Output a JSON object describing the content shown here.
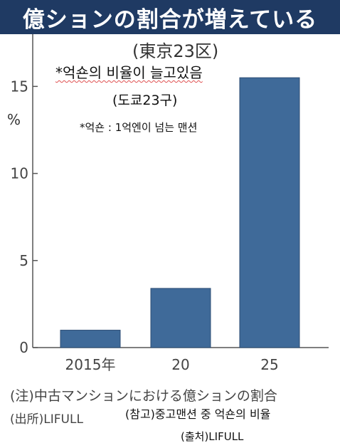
{
  "chart_data": {
    "type": "bar",
    "title": "億ションの割合が増えている",
    "subtitle": "(東京23区)",
    "ylabel": "%",
    "categories": [
      "2015年",
      "20",
      "25"
    ],
    "values": [
      1.0,
      3.4,
      15.5
    ],
    "ylim": [
      0,
      18
    ],
    "yticks": [
      0,
      5,
      10,
      15
    ],
    "grid": false,
    "bar_color": "#3f6a99",
    "notes": {
      "note": "(注)中古マンションにおける億ションの割合",
      "source": "(出所)LIFULL"
    }
  },
  "korean_overlay": {
    "title": "*억숀의 비율이 늘고있음",
    "subtitle": "(도쿄23구)",
    "definition": "*억숀 : 1억엔이 넘는 맨션",
    "reference": "(참고)중고맨션 중 억숀의 비율",
    "source": "(출처)LIFULL"
  },
  "colors": {
    "banner": "#1f3a63",
    "bar": "#3f6a99",
    "axis": "#555555"
  }
}
